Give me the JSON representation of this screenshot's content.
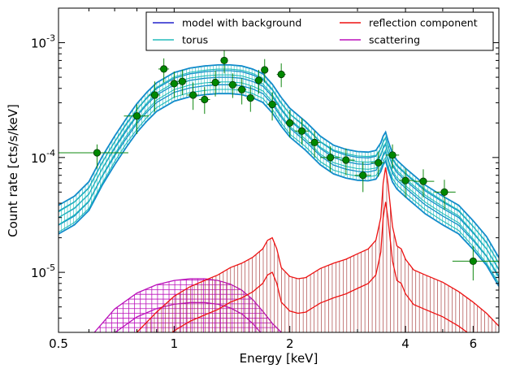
{
  "chart_data": {
    "type": "line",
    "xlabel": "Energy [keV]",
    "ylabel": "Count rate [cts/s/keV]",
    "xscale": "log",
    "yscale": "log",
    "xlim": [
      0.5,
      7.0
    ],
    "ylim": [
      3e-06,
      0.002
    ],
    "x_ticks": [
      {
        "v": 0.5,
        "label": "0.5"
      },
      {
        "v": 1,
        "label": "1"
      },
      {
        "v": 2,
        "label": "2"
      },
      {
        "v": 4,
        "label": "4"
      },
      {
        "v": 6,
        "label": "6"
      }
    ],
    "y_ticks": [
      {
        "v": 1e-05,
        "label": "10",
        "exp": "-5"
      },
      {
        "v": 0.0001,
        "label": "10",
        "exp": "-4"
      },
      {
        "v": 0.001,
        "label": "10",
        "exp": "-3"
      }
    ],
    "legend": {
      "placement": "top-right",
      "entries": [
        {
          "label": "model with background",
          "color": "#2222cc"
        },
        {
          "label": "reflection component",
          "color": "#ee1111"
        },
        {
          "label": "torus",
          "color": "#22bbbb"
        },
        {
          "label": "scattering",
          "color": "#bb11bb"
        }
      ]
    },
    "series": [
      {
        "name": "model with background",
        "color": "#2222cc",
        "band": "#1188cc",
        "x": [
          0.5,
          0.55,
          0.6,
          0.65,
          0.7,
          0.75,
          0.8,
          0.85,
          0.9,
          1.0,
          1.1,
          1.2,
          1.3,
          1.4,
          1.5,
          1.6,
          1.7,
          1.8,
          1.9,
          2.0,
          2.2,
          2.4,
          2.6,
          2.8,
          3.0,
          3.2,
          3.35,
          3.45,
          3.5,
          3.55,
          3.6,
          3.7,
          3.8,
          4.0,
          4.5,
          5.0,
          5.5,
          6.0,
          6.5,
          7.0
        ],
        "y": [
          3e-05,
          3.6e-05,
          4.8e-05,
          8e-05,
          0.00012,
          0.00017,
          0.00023,
          0.00029,
          0.00035,
          0.00043,
          0.00047,
          0.00049,
          0.0005,
          0.0005,
          0.00049,
          0.00046,
          0.00042,
          0.00034,
          0.00026,
          0.00021,
          0.00016,
          0.00012,
          0.0001,
          9.2e-05,
          8.8e-05,
          8.7e-05,
          9e-05,
          0.000105,
          0.00012,
          0.00013,
          0.00011,
          8.5e-05,
          7.4e-05,
          6.3e-05,
          4.5e-05,
          3.6e-05,
          3e-05,
          2.2e-05,
          1.6e-05,
          1.05e-05
        ]
      },
      {
        "name": "reflection component",
        "color": "#ee1111",
        "x": [
          0.8,
          0.9,
          1.0,
          1.1,
          1.2,
          1.3,
          1.4,
          1.5,
          1.6,
          1.7,
          1.75,
          1.8,
          1.85,
          1.9,
          2.0,
          2.1,
          2.2,
          2.4,
          2.6,
          2.8,
          3.0,
          3.2,
          3.35,
          3.45,
          3.5,
          3.55,
          3.6,
          3.7,
          3.8,
          3.9,
          4.0,
          4.2,
          4.5,
          5.0,
          5.5,
          6.0,
          6.5,
          7.0
        ],
        "y": [
          3e-06,
          4.5e-06,
          6.2e-06,
          7.5e-06,
          8.5e-06,
          9.5e-06,
          1.1e-05,
          1.2e-05,
          1.35e-05,
          1.6e-05,
          1.9e-05,
          2e-05,
          1.6e-05,
          1.1e-05,
          9.2e-06,
          8.8e-06,
          9e-06,
          1.08e-05,
          1.2e-05,
          1.3e-05,
          1.45e-05,
          1.6e-05,
          1.9e-05,
          3e-05,
          6e-05,
          8.2e-05,
          6e-05,
          2.5e-05,
          1.7e-05,
          1.6e-05,
          1.3e-05,
          1.05e-05,
          9.5e-06,
          8.2e-06,
          6.8e-06,
          5.5e-06,
          4.4e-06,
          3.4e-06
        ]
      },
      {
        "name": "torus",
        "color": "#22bbbb",
        "x": [
          0.5,
          0.55,
          0.6,
          0.65,
          0.7,
          0.75,
          0.8,
          0.85,
          0.9,
          1.0,
          1.1,
          1.2,
          1.3,
          1.4,
          1.5,
          1.6,
          1.7,
          1.8,
          1.9,
          2.0,
          2.2,
          2.4,
          2.6,
          2.8,
          3.0,
          3.2,
          3.35,
          3.45,
          3.5,
          3.55,
          3.6,
          3.7,
          3.8,
          4.0,
          4.5,
          5.0,
          5.5,
          6.0,
          6.5,
          7.0
        ],
        "y": [
          2.8e-05,
          3.4e-05,
          4.5e-05,
          7.5e-05,
          0.000115,
          0.000165,
          0.00022,
          0.00028,
          0.00034,
          0.00042,
          0.00046,
          0.00048,
          0.00049,
          0.00049,
          0.00048,
          0.00045,
          0.00041,
          0.00033,
          0.00025,
          0.0002,
          0.000155,
          0.000115,
          9.7e-05,
          9e-05,
          8.6e-05,
          8.5e-05,
          8.7e-05,
          0.0001,
          0.000115,
          0.000125,
          0.000105,
          8.2e-05,
          7.2e-05,
          6.1e-05,
          4.4e-05,
          3.5e-05,
          2.9e-05,
          2.1e-05,
          1.5e-05,
          1e-05
        ]
      },
      {
        "name": "scattering",
        "color": "#bb11bb",
        "x": [
          0.62,
          0.7,
          0.8,
          0.9,
          1.0,
          1.1,
          1.2,
          1.3,
          1.4,
          1.5,
          1.6,
          1.7,
          1.8,
          1.9
        ],
        "y": [
          3e-06,
          4.8e-06,
          6.6e-06,
          7.8e-06,
          8.5e-06,
          8.8e-06,
          8.8e-06,
          8.5e-06,
          7.9e-06,
          7e-06,
          5.8e-06,
          4.6e-06,
          3.6e-06,
          3e-06
        ]
      }
    ],
    "data_points": [
      {
        "x": 0.63,
        "xlo": 0.5,
        "xhi": 0.76,
        "y": 0.00011,
        "ylo": 8e-05,
        "yhi": 0.00013
      },
      {
        "x": 0.8,
        "xlo": 0.74,
        "xhi": 0.86,
        "y": 0.00023,
        "ylo": 0.00016,
        "yhi": 0.00029
      },
      {
        "x": 0.89,
        "xlo": 0.86,
        "xhi": 0.92,
        "y": 0.00035,
        "ylo": 0.00025,
        "yhi": 0.00046
      },
      {
        "x": 0.94,
        "xlo": 0.91,
        "xhi": 0.97,
        "y": 0.00059,
        "ylo": 0.00045,
        "yhi": 0.00073
      },
      {
        "x": 1.0,
        "xlo": 0.97,
        "xhi": 1.03,
        "y": 0.00044,
        "ylo": 0.00033,
        "yhi": 0.00056
      },
      {
        "x": 1.05,
        "xlo": 1.02,
        "xhi": 1.08,
        "y": 0.00046,
        "ylo": 0.00035,
        "yhi": 0.00058
      },
      {
        "x": 1.12,
        "xlo": 1.08,
        "xhi": 1.16,
        "y": 0.00035,
        "ylo": 0.00026,
        "yhi": 0.00045
      },
      {
        "x": 1.2,
        "xlo": 1.16,
        "xhi": 1.24,
        "y": 0.00032,
        "ylo": 0.00024,
        "yhi": 0.00041
      },
      {
        "x": 1.28,
        "xlo": 1.24,
        "xhi": 1.32,
        "y": 0.00045,
        "ylo": 0.00034,
        "yhi": 0.00057
      },
      {
        "x": 1.35,
        "xlo": 1.32,
        "xhi": 1.38,
        "y": 0.0007,
        "ylo": 0.00054,
        "yhi": 0.00085
      },
      {
        "x": 1.42,
        "xlo": 1.38,
        "xhi": 1.46,
        "y": 0.00043,
        "ylo": 0.00033,
        "yhi": 0.00054
      },
      {
        "x": 1.5,
        "xlo": 1.46,
        "xhi": 1.54,
        "y": 0.00039,
        "ylo": 0.00029,
        "yhi": 0.00049
      },
      {
        "x": 1.58,
        "xlo": 1.54,
        "xhi": 1.62,
        "y": 0.00033,
        "ylo": 0.00025,
        "yhi": 0.00042
      },
      {
        "x": 1.66,
        "xlo": 1.62,
        "xhi": 1.7,
        "y": 0.00047,
        "ylo": 0.00036,
        "yhi": 0.00058
      },
      {
        "x": 1.72,
        "xlo": 1.69,
        "xhi": 1.75,
        "y": 0.00058,
        "ylo": 0.00045,
        "yhi": 0.00072
      },
      {
        "x": 1.8,
        "xlo": 1.75,
        "xhi": 1.85,
        "y": 0.00029,
        "ylo": 0.00021,
        "yhi": 0.00037
      },
      {
        "x": 1.9,
        "xlo": 1.85,
        "xhi": 1.95,
        "y": 0.00053,
        "ylo": 0.00041,
        "yhi": 0.00066
      },
      {
        "x": 2.0,
        "xlo": 1.95,
        "xhi": 2.06,
        "y": 0.0002,
        "ylo": 0.00015,
        "yhi": 0.00026
      },
      {
        "x": 2.15,
        "xlo": 2.06,
        "xhi": 2.24,
        "y": 0.00017,
        "ylo": 0.00013,
        "yhi": 0.00022
      },
      {
        "x": 2.32,
        "xlo": 2.24,
        "xhi": 2.4,
        "y": 0.000135,
        "ylo": 0.0001,
        "yhi": 0.00017
      },
      {
        "x": 2.55,
        "xlo": 2.4,
        "xhi": 2.7,
        "y": 0.0001,
        "ylo": 7.5e-05,
        "yhi": 0.000125
      },
      {
        "x": 2.8,
        "xlo": 2.7,
        "xhi": 2.95,
        "y": 9.5e-05,
        "ylo": 7e-05,
        "yhi": 0.00012
      },
      {
        "x": 3.1,
        "xlo": 2.95,
        "xhi": 3.25,
        "y": 7e-05,
        "ylo": 5e-05,
        "yhi": 9.2e-05
      },
      {
        "x": 3.4,
        "xlo": 3.25,
        "xhi": 3.52,
        "y": 9e-05,
        "ylo": 6.8e-05,
        "yhi": 0.000112
      },
      {
        "x": 3.7,
        "xlo": 3.55,
        "xhi": 3.85,
        "y": 0.000105,
        "ylo": 8e-05,
        "yhi": 0.00013
      },
      {
        "x": 4.0,
        "xlo": 3.85,
        "xhi": 4.2,
        "y": 6.3e-05,
        "ylo": 4.5e-05,
        "yhi": 8e-05
      },
      {
        "x": 4.45,
        "xlo": 4.2,
        "xhi": 4.75,
        "y": 6.2e-05,
        "ylo": 4.5e-05,
        "yhi": 7.9e-05
      },
      {
        "x": 5.05,
        "xlo": 4.75,
        "xhi": 5.4,
        "y": 5e-05,
        "ylo": 3.5e-05,
        "yhi": 6.4e-05
      },
      {
        "x": 6.0,
        "xlo": 5.3,
        "xhi": 7.0,
        "y": 1.25e-05,
        "ylo": 8.5e-06,
        "yhi": 1.7e-05
      }
    ]
  }
}
